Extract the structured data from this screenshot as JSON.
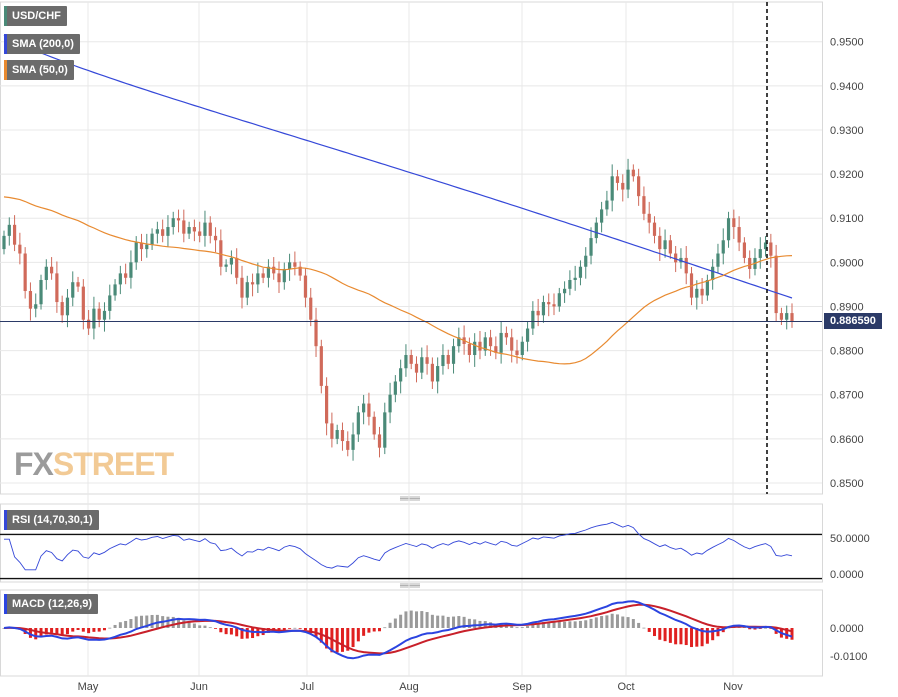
{
  "symbol": "USD/CHF",
  "indicators": {
    "sma200": {
      "label": "SMA (200,0)",
      "color": "#3548d8"
    },
    "sma50": {
      "label": "SMA (50,0)",
      "color": "#e88a30"
    },
    "rsi": {
      "label": "RSI (14,70,30,1)",
      "color": "#3548d8"
    },
    "macd": {
      "label": "MACD (12,26,9)",
      "macd_color": "#2b44e0",
      "signal_color": "#c8202a"
    }
  },
  "last_price_label": "0.886590",
  "logo": {
    "fx": "FX",
    "street": "STREET"
  },
  "colors": {
    "bull": "#4a8a78",
    "bear": "#d06a5a",
    "grid": "#e8e8e8",
    "axis_text": "#444444"
  },
  "chart_data": {
    "type": "candlestick",
    "x_labels": [
      "May",
      "Jun",
      "Jul",
      "Aug",
      "Sep",
      "Oct",
      "Nov"
    ],
    "price_axis": {
      "ylim": [
        0.8475,
        0.959
      ],
      "ticks": [
        "0.9500",
        "0.9400",
        "0.9300",
        "0.9200",
        "0.9100",
        "0.9000",
        "0.8900",
        "0.8800",
        "0.8700",
        "0.8600",
        "0.8500"
      ],
      "current_price": 0.88659
    },
    "close": [
      0.906,
      0.9085,
      0.904,
      0.902,
      0.8935,
      0.8895,
      0.8905,
      0.896,
      0.899,
      0.8975,
      0.891,
      0.888,
      0.892,
      0.8955,
      0.8945,
      0.887,
      0.885,
      0.8895,
      0.887,
      0.889,
      0.8925,
      0.895,
      0.8975,
      0.8965,
      0.9,
      0.9045,
      0.903,
      0.904,
      0.9065,
      0.9075,
      0.906,
      0.908,
      0.91,
      0.9095,
      0.9065,
      0.908,
      0.907,
      0.906,
      0.909,
      0.906,
      0.905,
      0.899,
      0.8995,
      0.901,
      0.8965,
      0.892,
      0.8955,
      0.895,
      0.8975,
      0.8965,
      0.899,
      0.8975,
      0.8955,
      0.8985,
      0.9,
      0.899,
      0.897,
      0.892,
      0.887,
      0.881,
      0.872,
      0.8635,
      0.86,
      0.862,
      0.8595,
      0.8575,
      0.861,
      0.866,
      0.868,
      0.865,
      0.861,
      0.858,
      0.866,
      0.87,
      0.873,
      0.876,
      0.879,
      0.877,
      0.875,
      0.8785,
      0.877,
      0.873,
      0.8765,
      0.879,
      0.877,
      0.881,
      0.883,
      0.8815,
      0.879,
      0.882,
      0.88,
      0.883,
      0.881,
      0.8795,
      0.884,
      0.883,
      0.88,
      0.879,
      0.882,
      0.885,
      0.889,
      0.888,
      0.891,
      0.8905,
      0.89,
      0.893,
      0.894,
      0.896,
      0.8965,
      0.899,
      0.9015,
      0.9055,
      0.909,
      0.912,
      0.914,
      0.9195,
      0.918,
      0.9165,
      0.921,
      0.9195,
      0.915,
      0.911,
      0.909,
      0.906,
      0.903,
      0.905,
      0.902,
      0.9,
      0.901,
      0.8975,
      0.892,
      0.894,
      0.8925,
      0.896,
      0.899,
      0.902,
      0.905,
      0.91,
      0.908,
      0.9045,
      0.901,
      0.8985,
      0.901,
      0.903,
      0.9045,
      0.9015,
      0.8885,
      0.887,
      0.8885,
      0.8866
    ]
  }
}
